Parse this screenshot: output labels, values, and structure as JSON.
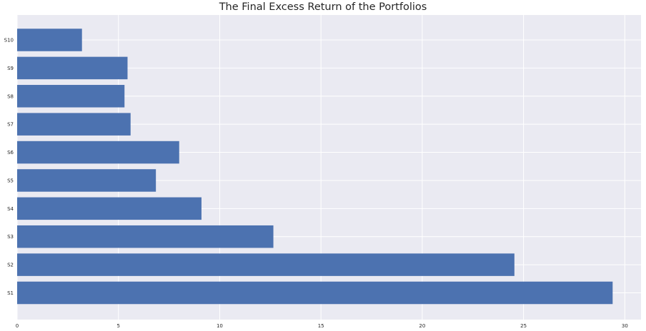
{
  "chart_data": {
    "type": "bar",
    "orientation": "horizontal",
    "title": "The Final Excess Return of the Portfolios",
    "xlabel": "",
    "ylabel": "",
    "categories": [
      "S1",
      "S2",
      "S3",
      "S4",
      "S5",
      "S6",
      "S7",
      "S8",
      "S9",
      "S10"
    ],
    "values": [
      29.4,
      24.55,
      12.65,
      9.1,
      6.85,
      8.0,
      5.6,
      5.3,
      5.45,
      3.2
    ],
    "xlim": [
      0,
      30.8
    ],
    "xticks": [
      0,
      5,
      10,
      15,
      20,
      25,
      30
    ],
    "grid": true,
    "colors": {
      "bar": "#4c72b0",
      "background": "#eaeaf2",
      "grid": "#ffffff"
    }
  }
}
